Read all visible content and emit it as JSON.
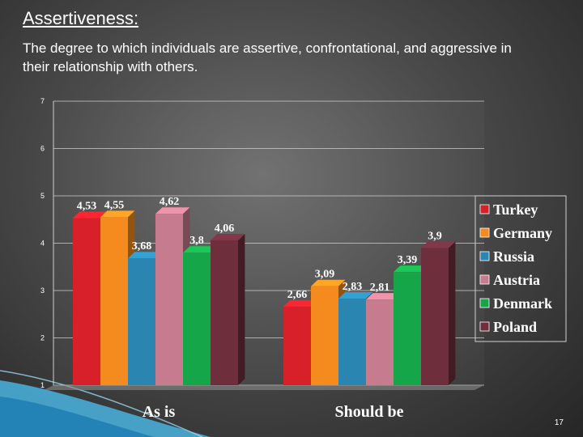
{
  "slide": {
    "title": "Assertiveness:",
    "subtitle": "The degree to which individuals are assertive, confrontational, and aggressive in their relationship with others.",
    "page_number": "17"
  },
  "chart_data": {
    "type": "bar",
    "subtype": "3d-clustered",
    "categories": [
      "As is",
      "Should be"
    ],
    "series": [
      {
        "name": "Turkey",
        "color": "#d8202a",
        "values": [
          4.53,
          2.66
        ],
        "labels": [
          "4,53",
          "2,66"
        ]
      },
      {
        "name": "Germany",
        "color": "#f58a1f",
        "values": [
          4.55,
          3.09
        ],
        "labels": [
          "4,55",
          "3,09"
        ]
      },
      {
        "name": "Russia",
        "color": "#2a86b0",
        "values": [
          3.68,
          2.83
        ],
        "labels": [
          "3,68",
          "2,83"
        ]
      },
      {
        "name": "Austria",
        "color": "#c77b8e",
        "values": [
          4.62,
          2.81
        ],
        "labels": [
          "4,62",
          "2,81"
        ]
      },
      {
        "name": "Denmark",
        "color": "#16a64a",
        "values": [
          3.8,
          3.39
        ],
        "labels": [
          "3,8",
          "3,39"
        ]
      },
      {
        "name": "Poland",
        "color": "#6e2e3c",
        "values": [
          4.06,
          3.9
        ],
        "labels": [
          "4,06",
          "3,9"
        ]
      }
    ],
    "yticks": [
      "1",
      "2",
      "3",
      "4",
      "5",
      "6",
      "7"
    ],
    "ylim": [
      1,
      7
    ],
    "grid": true,
    "legend": "right"
  }
}
